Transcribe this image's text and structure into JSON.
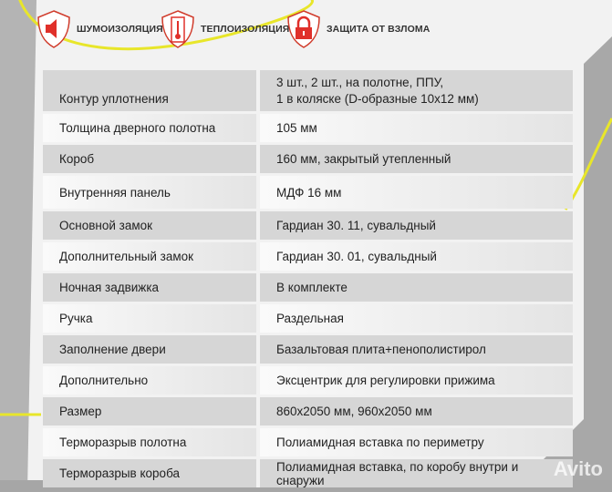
{
  "features": [
    {
      "icon": "speaker-icon",
      "label": "ШУМОИЗОЛЯЦИЯ"
    },
    {
      "icon": "thermometer-icon",
      "label": "ТЕПЛОИЗОЛЯЦИЯ"
    },
    {
      "icon": "padlock-icon",
      "label": "ЗАЩИТА ОТ ВЗЛОМА"
    }
  ],
  "colors": {
    "accent": "#e0302a",
    "curve": "#e8e62a"
  },
  "specs": [
    {
      "k": "Контур уплотнения",
      "v": "3 шт., 2 шт., на полотне, ППУ,",
      "v2": "1 в коляске (D-образные 10х12 мм)"
    },
    {
      "k": "Толщина дверного полотна",
      "v": "105 мм"
    },
    {
      "k": "Короб",
      "v": "160 мм, закрытый утепленный"
    },
    {
      "k": "Внутренняя панель",
      "v": "МДФ 16 мм"
    },
    {
      "k": "Основной замок",
      "v": "Гардиан 30. 11, сувальдный"
    },
    {
      "k": "Дополнительный замок",
      "v": "Гардиан 30. 01, сувальдный"
    },
    {
      "k": "Ночная задвижка",
      "v": "В комплекте"
    },
    {
      "k": "Ручка",
      "v": "Раздельная"
    },
    {
      "k": "Заполнение двери",
      "v": "Базальтовая плита+пенополистирол"
    },
    {
      "k": "Дополнительно",
      "v": "Эксцентрик для регулировки прижима"
    },
    {
      "k": "Размер",
      "v": "860х2050 мм, 960х2050 мм"
    },
    {
      "k": "Терморазрыв полотна",
      "v": "Полиамидная вставка по периметру"
    },
    {
      "k": "Терморазрыв короба",
      "v": "Полиамидная вставка, по коробу внутри и снаружи"
    }
  ],
  "watermark": "Avito"
}
